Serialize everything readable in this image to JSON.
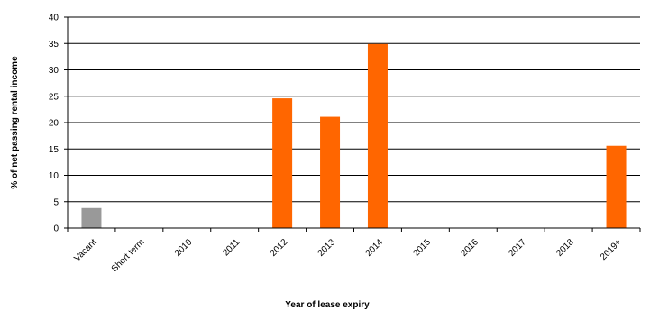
{
  "chart_data": {
    "type": "bar",
    "title": "",
    "xlabel": "Year of lease expiry",
    "ylabel": "% of net passing rental income",
    "categories": [
      "Vacant",
      "Short term",
      "2010",
      "2011",
      "2012",
      "2013",
      "2014",
      "2015",
      "2016",
      "2017",
      "2018",
      "2019+"
    ],
    "values": [
      3.8,
      0,
      0,
      0,
      24.6,
      21.1,
      34.9,
      0,
      0,
      0,
      0,
      15.6
    ],
    "bar_colors": [
      "#999999",
      "#FF6600",
      "#FF6600",
      "#FF6600",
      "#FF6600",
      "#FF6600",
      "#FF6600",
      "#FF6600",
      "#FF6600",
      "#FF6600",
      "#FF6600",
      "#FF6600"
    ],
    "ylim": [
      0,
      40
    ],
    "yticks": [
      0,
      5,
      10,
      15,
      20,
      25,
      30,
      35,
      40
    ],
    "grid": true,
    "legend": "none"
  }
}
